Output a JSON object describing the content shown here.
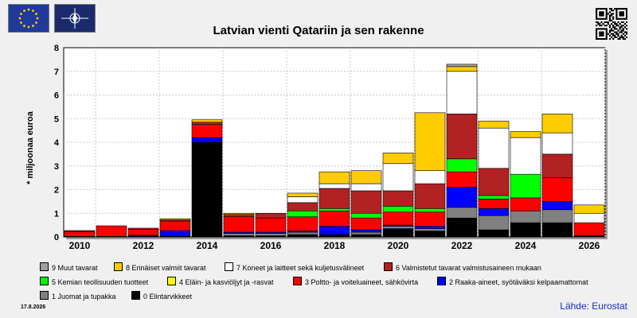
{
  "header": {
    "title": "Latvian vienti Qatariin ja sen rakenne"
  },
  "icons": {
    "flag_left": "eu-flag-icon",
    "flag_right": "nato-flag-icon",
    "qr": "qr-code-icon"
  },
  "footer": {
    "date": "17.8.2026",
    "source": "Lähde: Eurostat"
  },
  "chart_data": {
    "type": "bar",
    "stacked": true,
    "title": "Latvian vienti Qatariin ja sen rakenne",
    "ylabel": "* miljoonaa euroa",
    "xlabel": "",
    "ylim": [
      0,
      8
    ],
    "yticks": [
      0,
      1,
      2,
      3,
      4,
      5,
      6,
      7,
      8
    ],
    "grid": true,
    "categories": [
      2010,
      2011,
      2012,
      2013,
      2014,
      2015,
      2016,
      2017,
      2018,
      2019,
      2020,
      2021,
      2022,
      2023,
      2024,
      2025,
      2026
    ],
    "tick_labels": [
      "2010",
      "2012",
      "2014",
      "2016",
      "2018",
      "2020",
      "2022",
      "2024",
      "2026"
    ],
    "series": [
      {
        "name": "0 Elintarvikkeet",
        "color": "#000000",
        "values": [
          0.02,
          0.02,
          0.02,
          0.02,
          4.0,
          0.05,
          0.05,
          0.1,
          0.1,
          0.1,
          0.35,
          0.25,
          0.8,
          0.3,
          0.6,
          0.6,
          0.05
        ]
      },
      {
        "name": "1 Juomat ja tupakka",
        "color": "#808080",
        "values": [
          0.0,
          0.0,
          0.0,
          0.0,
          0.0,
          0.1,
          0.1,
          0.1,
          0.0,
          0.1,
          0.1,
          0.1,
          0.45,
          0.6,
          0.5,
          0.55,
          0.0
        ]
      },
      {
        "name": "2 Raaka-aineet, syötäväksi kelpaamattomat",
        "color": "#0000ff",
        "values": [
          0.0,
          0.0,
          0.05,
          0.25,
          0.2,
          0.05,
          0.05,
          0.05,
          0.35,
          0.1,
          0.05,
          0.1,
          0.85,
          0.3,
          0.0,
          0.35,
          0.0
        ]
      },
      {
        "name": "3 Poltto- ja voiteluaineet, sähkövirta",
        "color": "#ff0000",
        "values": [
          0.2,
          0.45,
          0.25,
          0.4,
          0.55,
          0.65,
          0.6,
          0.6,
          0.65,
          0.5,
          0.55,
          0.6,
          0.65,
          0.4,
          0.55,
          1.0,
          0.55
        ]
      },
      {
        "name": "4 Eläin- ja kasviöljyt ja -rasvat",
        "color": "#ffff00",
        "values": [
          0.0,
          0.0,
          0.0,
          0.0,
          0.0,
          0.0,
          0.0,
          0.0,
          0.0,
          0.0,
          0.0,
          0.0,
          0.0,
          0.0,
          0.0,
          0.0,
          0.0
        ]
      },
      {
        "name": "5 Kemian teollisuuden tuotteet",
        "color": "#00ff00",
        "values": [
          0.0,
          0.0,
          0.0,
          0.0,
          0.0,
          0.0,
          0.0,
          0.25,
          0.1,
          0.2,
          0.25,
          0.15,
          0.55,
          0.15,
          1.0,
          0.0,
          0.0
        ]
      },
      {
        "name": "6 Valmistetut tavarat valmistusaineen mukaan",
        "color": "#b22222",
        "values": [
          0.05,
          0.0,
          0.05,
          0.05,
          0.1,
          0.1,
          0.2,
          0.35,
          0.85,
          0.95,
          0.65,
          1.05,
          1.9,
          1.15,
          0.0,
          1.0,
          0.0
        ]
      },
      {
        "name": "7 Koneet ja laitteet sekä kuljetusvälineet",
        "color": "#ffffff",
        "values": [
          0.0,
          0.0,
          0.0,
          0.0,
          0.0,
          0.0,
          0.0,
          0.25,
          0.2,
          0.3,
          1.15,
          0.55,
          1.8,
          1.7,
          1.55,
          0.9,
          0.4
        ]
      },
      {
        "name": "8 Erinäiset valmiit tavarat",
        "color": "#ffcc00",
        "values": [
          0.0,
          0.0,
          0.0,
          0.05,
          0.1,
          0.05,
          0.0,
          0.15,
          0.5,
          0.55,
          0.45,
          2.45,
          0.2,
          0.3,
          0.25,
          0.8,
          0.35
        ]
      },
      {
        "name": "9 Muut tavarat",
        "color": "#a0a0a0",
        "values": [
          0.0,
          0.0,
          0.0,
          0.0,
          0.0,
          0.0,
          0.0,
          0.0,
          0.0,
          0.0,
          0.0,
          0.0,
          0.1,
          0.0,
          0.0,
          0.0,
          0.0
        ]
      }
    ],
    "legend_placement": "bottom",
    "legend_order": [
      9,
      8,
      7,
      6,
      5,
      4,
      3,
      2,
      1,
      0
    ]
  }
}
